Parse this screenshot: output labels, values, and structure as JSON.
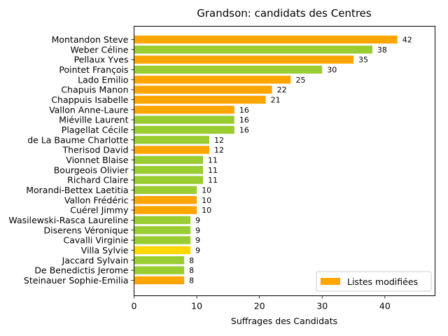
{
  "chart_data": {
    "type": "bar",
    "orientation": "horizontal",
    "title": "Grandson: candidats des Centres",
    "xlabel": "Suffrages des Candidats",
    "ylabel": "",
    "xlim": [
      0,
      48
    ],
    "xticks": [
      0,
      10,
      20,
      30,
      40
    ],
    "grid": false,
    "legend": {
      "placement": "lower-right",
      "entries": [
        {
          "label": "Listes modifiées",
          "color": "#FFA500"
        }
      ]
    },
    "colors": {
      "orange": "#FFA500",
      "green": "#9ACD32",
      "gold": "#FFD700"
    },
    "bars": [
      {
        "label": "Montandon Steve",
        "value": 42,
        "color": "#FFA500"
      },
      {
        "label": "Weber Céline",
        "value": 38,
        "color": "#9ACD32"
      },
      {
        "label": "Pellaux Yves",
        "value": 35,
        "color": "#FFA500"
      },
      {
        "label": "Pointet François",
        "value": 30,
        "color": "#9ACD32"
      },
      {
        "label": "Lado Emilio",
        "value": 25,
        "color": "#FFA500"
      },
      {
        "label": "Chapuis Manon",
        "value": 22,
        "color": "#FFA500"
      },
      {
        "label": "Chappuis Isabelle",
        "value": 21,
        "color": "#FFA500"
      },
      {
        "label": "Vallon Anne-Laure",
        "value": 16,
        "color": "#FFA500"
      },
      {
        "label": "Miéville Laurent",
        "value": 16,
        "color": "#9ACD32"
      },
      {
        "label": "Plagellat Cécile",
        "value": 16,
        "color": "#9ACD32"
      },
      {
        "label": "de La Baume Charlotte",
        "value": 12,
        "color": "#9ACD32"
      },
      {
        "label": "Therisod David",
        "value": 12,
        "color": "#FFA500"
      },
      {
        "label": "Vionnet Blaise",
        "value": 11,
        "color": "#9ACD32"
      },
      {
        "label": "Bourgeois Olivier",
        "value": 11,
        "color": "#9ACD32"
      },
      {
        "label": "Richard Claire",
        "value": 11,
        "color": "#9ACD32"
      },
      {
        "label": "Morandi-Bettex Laetitia",
        "value": 10,
        "color": "#9ACD32"
      },
      {
        "label": "Vallon Frédéric",
        "value": 10,
        "color": "#FFA500"
      },
      {
        "label": "Cuérel Jimmy",
        "value": 10,
        "color": "#FFA500"
      },
      {
        "label": "Wasilewski-Rasca Laureline",
        "value": 9,
        "color": "#9ACD32"
      },
      {
        "label": "Diserens Véronique",
        "value": 9,
        "color": "#9ACD32"
      },
      {
        "label": "Cavalli Virginie",
        "value": 9,
        "color": "#9ACD32"
      },
      {
        "label": "Villa Sylvie",
        "value": 9,
        "color": "#FFD700"
      },
      {
        "label": "Jaccard Sylvain",
        "value": 8,
        "color": "#9ACD32"
      },
      {
        "label": "De Benedictis Jerome",
        "value": 8,
        "color": "#9ACD32"
      },
      {
        "label": "Steinauer Sophie-Emilia",
        "value": 8,
        "color": "#FFA500"
      }
    ]
  }
}
